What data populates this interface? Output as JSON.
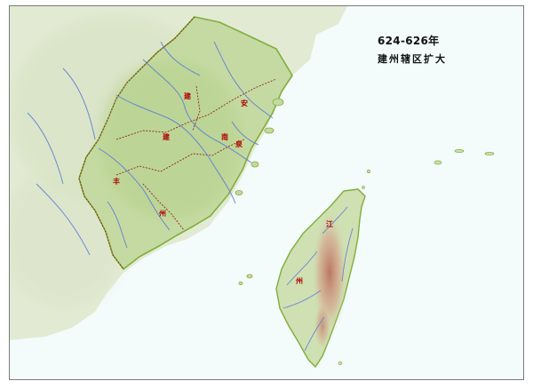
{
  "map": {
    "period": "624-626年",
    "subtitle": "建州辖区扩大",
    "region_labels": [
      "建",
      "建",
      "南",
      "丰",
      "州",
      "州",
      "江",
      "安",
      "泉"
    ],
    "colors": {
      "sea": "#f3fbfb",
      "land_mainland": "#dfe8cc",
      "fujian_fill": "#c9dca8",
      "fujian_border": "#7fae3a",
      "rivers": "#5a78d8",
      "taiwan_fill": "#cfe0b2",
      "taiwan_mountains": "#c98f7a",
      "admin_boundary": "#8b2a1a"
    }
  }
}
